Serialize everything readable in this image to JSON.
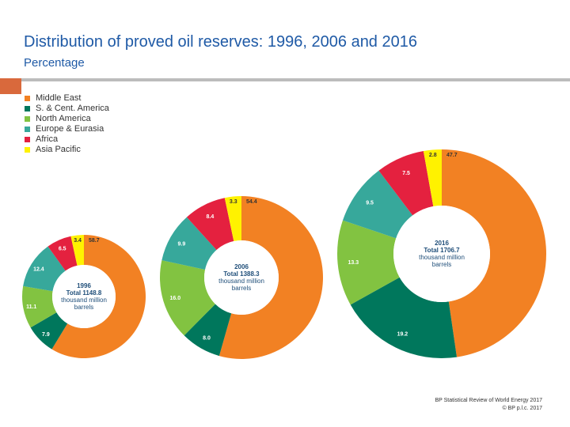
{
  "title": "Distribution of proved oil reserves: 1996, 2006 and 2016",
  "subtitle": "Percentage",
  "source": {
    "line1": "BP Statistical Review of World Energy 2017",
    "line2": "© BP p.l.c. 2017"
  },
  "colors": {
    "title": "#1f5aa6",
    "accent": "#d9693c",
    "rule": "#bcbcbc"
  },
  "chart_data": {
    "type": "pie",
    "variant": "donut",
    "title": "Distribution of proved oil reserves: 1996, 2006 and 2016",
    "subtitle": "Percentage",
    "categories": [
      "Middle East",
      "S. & Cent. America",
      "North America",
      "Europe & Eurasia",
      "Africa",
      "Asia Pacific"
    ],
    "category_colors": [
      "#f28123",
      "#00775c",
      "#82c341",
      "#37a89b",
      "#e4213f",
      "#fff200"
    ],
    "series": [
      {
        "name": "1996",
        "center_year": "1996",
        "center_total": "Total 1148.8",
        "center_unit_1": "thousand million",
        "center_unit_2": "barrels",
        "values": [
          58.7,
          7.9,
          11.1,
          12.4,
          6.5,
          3.4
        ],
        "labels": [
          "58.7",
          "7.9",
          "11.1",
          "12.4",
          "6.5",
          "3.4"
        ]
      },
      {
        "name": "2006",
        "center_year": "2006",
        "center_total": "Total 1388.3",
        "center_unit_1": "thousand million",
        "center_unit_2": "barrels",
        "values": [
          54.4,
          8.0,
          16.0,
          9.9,
          8.4,
          3.3
        ],
        "labels": [
          "54.4",
          "8.0",
          "16.0",
          "9.9",
          "8.4",
          "3.3"
        ]
      },
      {
        "name": "2016",
        "center_year": "2016",
        "center_total": "Total 1706.7",
        "center_unit_1": "thousand million",
        "center_unit_2": "barrels",
        "values": [
          47.7,
          19.2,
          13.3,
          9.5,
          7.5,
          2.8
        ],
        "labels": [
          "47.7",
          "19.2",
          "13.3",
          "9.5",
          "7.5",
          "2.8"
        ]
      }
    ]
  }
}
